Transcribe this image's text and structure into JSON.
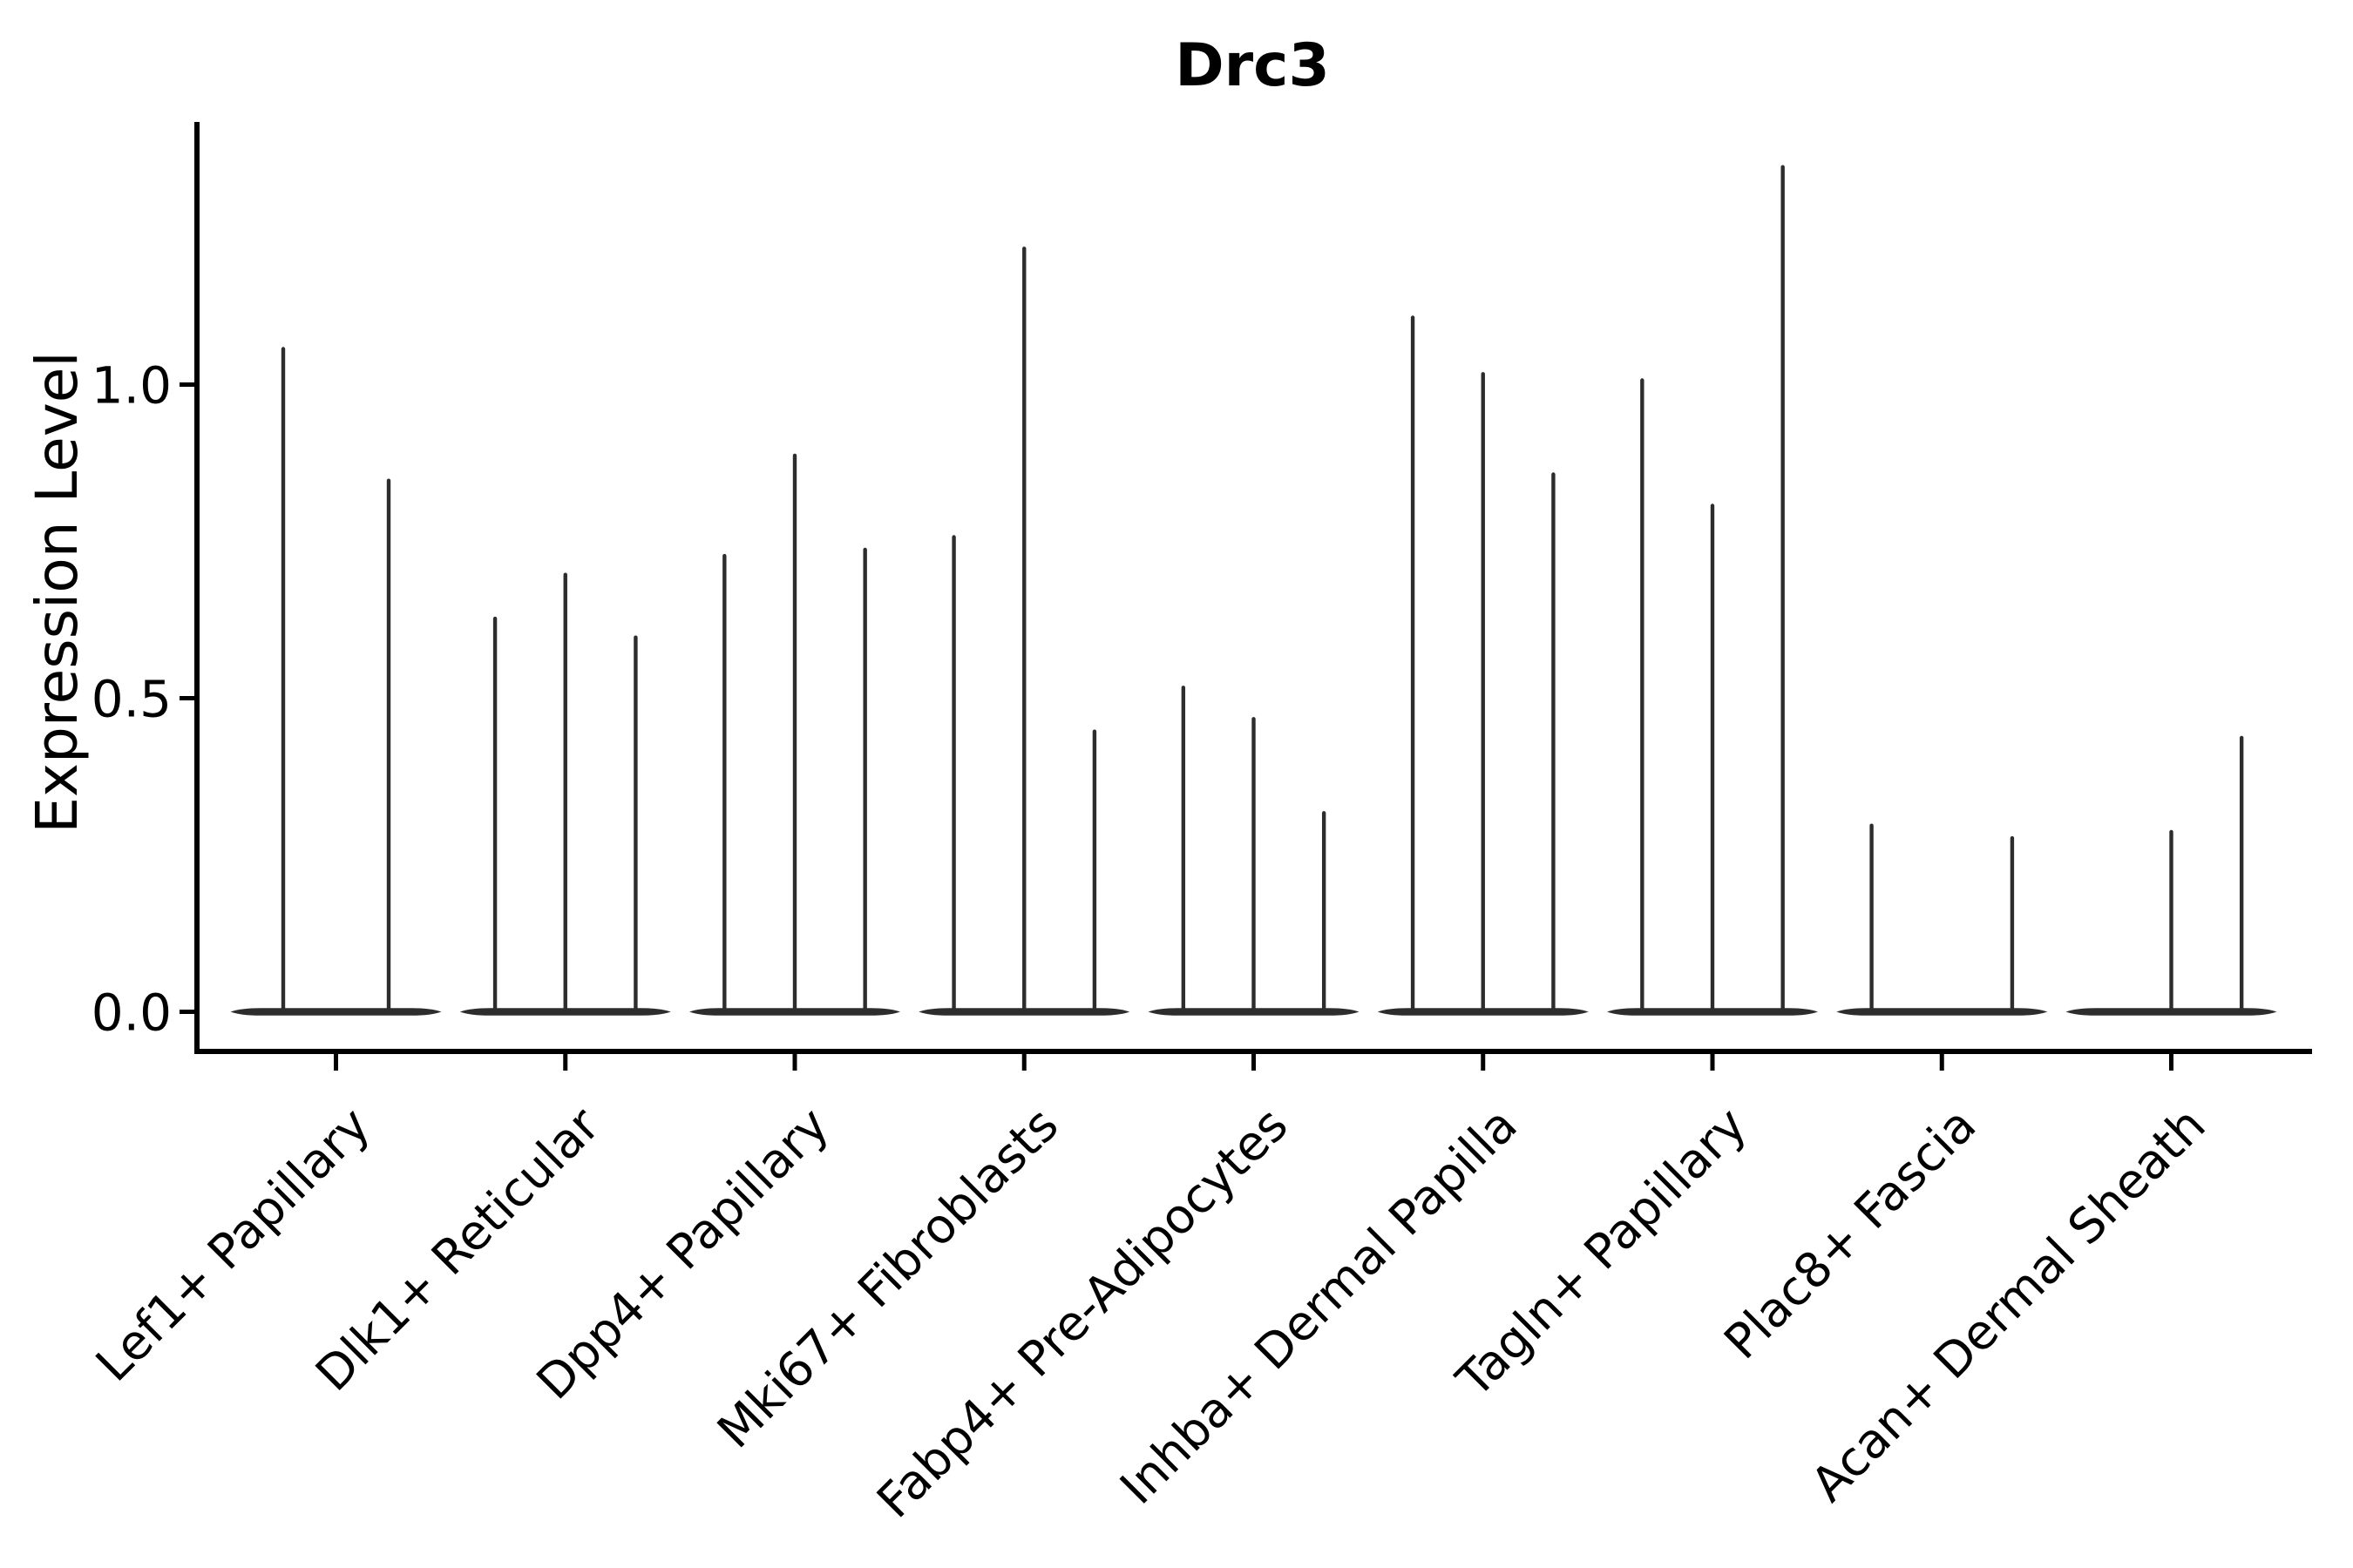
{
  "chart_data": {
    "type": "violin",
    "title": "Drc3",
    "xlabel": "",
    "ylabel": "Expression Level",
    "ytick_labels": [
      "0.0",
      "0.5",
      "1.0"
    ],
    "ytick_values": [
      0.0,
      0.5,
      1.0
    ],
    "ylim": [
      -0.064,
      1.415
    ],
    "grid": false,
    "legend_position": "none",
    "categories": [
      "Lef1+ Papillary",
      "Dlk1+ Reticular",
      "Dpp4+ Papillary",
      "Mki67+ Fibroblasts",
      "Fabp4+ Pre-Adipocytes",
      "Inhba+ Dermal Papilla",
      "Tagln+ Papillary",
      "Plac8+ Fascia",
      "Acan+ Dermal Sheath"
    ],
    "groups": [
      {
        "label": "Lef1+ Papillary",
        "violin_peaks": [
          1.06,
          0.85
        ]
      },
      {
        "label": "Dlk1+ Reticular",
        "violin_peaks": [
          0.63,
          0.7,
          0.6
        ]
      },
      {
        "label": "Dpp4+ Papillary",
        "violin_peaks": [
          0.73,
          0.89,
          0.74
        ]
      },
      {
        "label": "Mki67+ Fibroblasts",
        "violin_peaks": [
          0.76,
          1.22,
          0.45
        ]
      },
      {
        "label": "Fabp4+ Pre-Adipocytes",
        "violin_peaks": [
          0.52,
          0.47,
          0.32
        ]
      },
      {
        "label": "Inhba+ Dermal Papilla",
        "violin_peaks": [
          1.11,
          1.02,
          0.86
        ]
      },
      {
        "label": "Tagln+ Papillary",
        "violin_peaks": [
          1.01,
          0.81,
          1.35
        ]
      },
      {
        "label": "Plac8+ Fascia",
        "violin_peaks": [
          0.3,
          0.0,
          0.28
        ]
      },
      {
        "label": "Acan+ Dermal Sheath",
        "violin_peaks": [
          0.0,
          0.29,
          0.44
        ]
      }
    ],
    "colors": {
      "violin": "#2d2d2d",
      "axis": "#000000",
      "text": "#000000",
      "background": "#ffffff"
    }
  }
}
